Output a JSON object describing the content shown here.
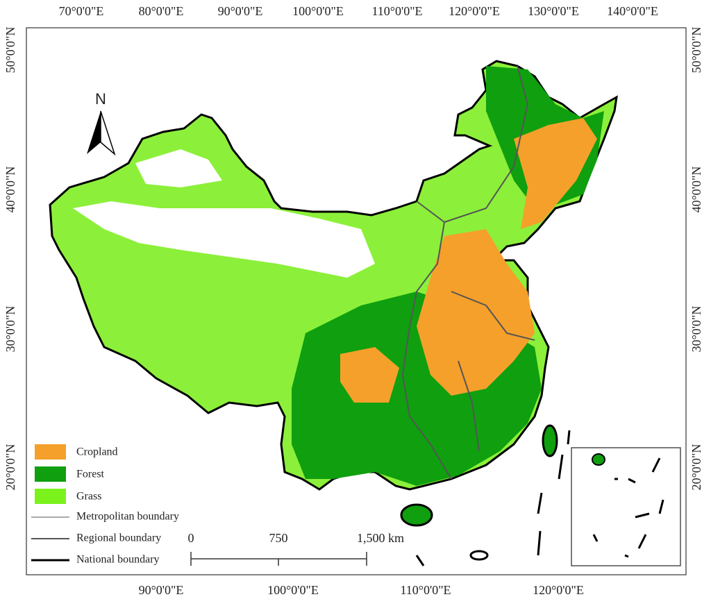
{
  "map": {
    "top_labels": [
      "70°0'0\"E",
      "80°0'0\"E",
      "90°0'0\"E",
      "100°0'0\"E",
      "110°0'0\"E",
      "120°0'0\"E",
      "130°0'0\"E",
      "140°0'0\"E"
    ],
    "bottom_labels": [
      "90°0'0\"E",
      "100°0'0\"E",
      "110°0'0\"E",
      "120°0'0\"E"
    ],
    "left_labels": [
      "50°0'0\"N",
      "40°0'0\"N",
      "30°0'0\"N",
      "20°0'0\"N"
    ],
    "right_labels": [
      "50°0'0\"N",
      "40°0'0\"N",
      "30°0'0\"N",
      "20°0'0\"N"
    ],
    "north": "N",
    "legend": [
      {
        "label": "Cropland",
        "color": "#f5a02a"
      },
      {
        "label": "Forest",
        "color": "#0f9f0f"
      },
      {
        "label": "Grass",
        "color": "#7cf21c"
      }
    ],
    "boundaries": [
      "Metropolitan boundary",
      "Regional boundary",
      "National boundary"
    ],
    "scale": [
      "0",
      "750",
      "1,500 km"
    ]
  }
}
